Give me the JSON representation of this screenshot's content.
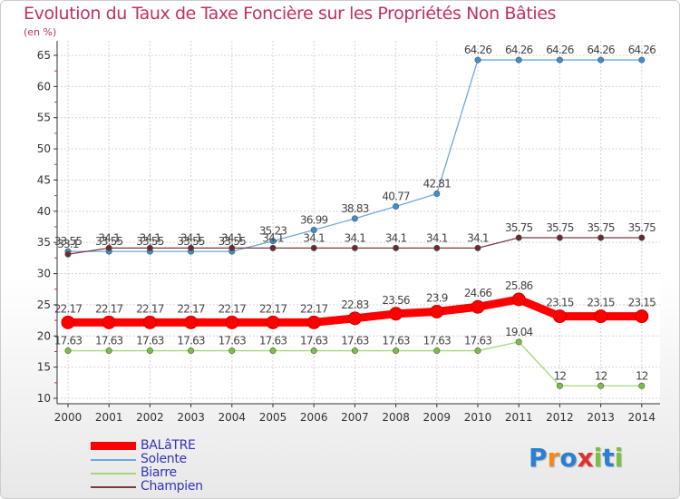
{
  "title": "Evolution du Taux de Taxe Foncière sur les Propriétés Non Bâties",
  "unit": "(en %)",
  "logo": {
    "text": "Proxiti",
    "letter_colors": [
      "#2a7fd0",
      "#f08a20",
      "#2a7fd0",
      "#e03030",
      "#7ac142",
      "#2a7fd0",
      "#7ac142"
    ]
  },
  "chart_data": {
    "type": "line",
    "x": [
      "2000",
      "2001",
      "2002",
      "2003",
      "2004",
      "2005",
      "2006",
      "2007",
      "2008",
      "2009",
      "2010",
      "2011",
      "2012",
      "2013",
      "2014"
    ],
    "ylim": [
      10,
      65
    ],
    "yticks": [
      "10",
      "15",
      "20",
      "25",
      "30",
      "35",
      "40",
      "45",
      "50",
      "55",
      "60",
      "65"
    ],
    "grid": true,
    "series": [
      {
        "name": "BALâTRE",
        "color": "#ff0000",
        "emphasis": true,
        "values": [
          22.17,
          22.17,
          22.17,
          22.17,
          22.17,
          22.17,
          22.17,
          22.83,
          23.56,
          23.9,
          24.66,
          25.86,
          23.15,
          23.15,
          23.15
        ],
        "labels": [
          "22.17",
          "22.17",
          "22.17",
          "22.17",
          "22.17",
          "22.17",
          "22.17",
          "22.83",
          "23.56",
          "23.9",
          "24.66",
          "25.86",
          "23.15",
          "23.15",
          "23.15"
        ]
      },
      {
        "name": "Solente",
        "color": "#6fa8dc",
        "marker": "#3a8fd0",
        "values": [
          33.55,
          33.55,
          33.55,
          33.55,
          33.55,
          35.23,
          36.99,
          38.83,
          40.77,
          42.81,
          64.26,
          64.26,
          64.26,
          64.26,
          64.26
        ],
        "labels": [
          "33.55",
          "33.55",
          "33.55",
          "33.55",
          "33.55",
          "35.23",
          "36.99",
          "38.83",
          "40.77",
          "42.81",
          "64.26",
          "64.26",
          "64.26",
          "64.26",
          "64.26"
        ]
      },
      {
        "name": "Biarre",
        "color": "#a3d977",
        "marker": "#7ac142",
        "values": [
          17.63,
          17.63,
          17.63,
          17.63,
          17.63,
          17.63,
          17.63,
          17.63,
          17.63,
          17.63,
          17.63,
          19.04,
          12,
          12,
          12
        ],
        "labels": [
          "17.63",
          "17.63",
          "17.63",
          "17.63",
          "17.63",
          "17.63",
          "17.63",
          "17.63",
          "17.63",
          "17.63",
          "17.63",
          "19.04",
          "12",
          "12",
          "12"
        ]
      },
      {
        "name": "Champien",
        "color": "#7a3a40",
        "marker": "#6a2a30",
        "values": [
          33.1,
          34.1,
          34.1,
          34.1,
          34.1,
          34.1,
          34.1,
          34.1,
          34.1,
          34.1,
          34.1,
          35.75,
          35.75,
          35.75,
          35.75
        ],
        "labels": [
          "33.1",
          "34.1",
          "34.1",
          "34.1",
          "34.1",
          "34.1",
          "34.1",
          "34.1",
          "34.1",
          "34.1",
          "34.1",
          "35.75",
          "35.75",
          "35.75",
          "35.75"
        ]
      }
    ]
  }
}
